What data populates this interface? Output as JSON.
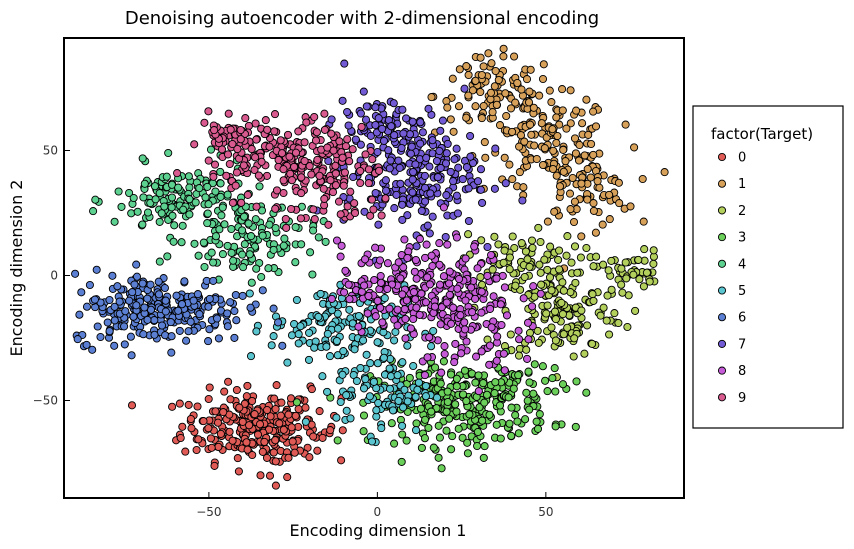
{
  "chart_data": {
    "type": "scatter",
    "title": "Denoising autoencoder with 2-dimensional encoding",
    "xlabel": "Encoding dimension 1",
    "ylabel": "Encoding dimension 2",
    "xlim": [
      -93,
      91
    ],
    "ylim": [
      -89,
      95
    ],
    "xticks": [
      -50,
      0,
      50
    ],
    "yticks": [
      -50,
      0,
      50
    ],
    "xtick_labels": [
      "−50",
      "0",
      "50"
    ],
    "ytick_labels": [
      "−50",
      "0",
      "50"
    ],
    "grid": false,
    "legend_title": "factor(Target)",
    "legend_position": "right",
    "series": [
      {
        "name": "0",
        "color": "#e05a56",
        "clusters": [
          {
            "center": [
              -38,
              -60
            ],
            "spread": [
              10,
              7
            ],
            "count": 230
          },
          {
            "center": [
              -27,
              -63
            ],
            "spread": [
              8,
              8
            ],
            "count": 60
          }
        ]
      },
      {
        "name": "1",
        "color": "#d8a15a",
        "clusters": [
          {
            "center": [
              35,
              72
            ],
            "spread": [
              9,
              8
            ],
            "count": 110
          },
          {
            "center": [
              52,
              55
            ],
            "spread": [
              9,
              8
            ],
            "count": 110
          },
          {
            "center": [
              60,
              35
            ],
            "spread": [
              8,
              8
            ],
            "count": 90
          }
        ]
      },
      {
        "name": "2",
        "color": "#b3cf5c",
        "clusters": [
          {
            "center": [
              55,
              -15
            ],
            "spread": [
              9,
              9
            ],
            "count": 140
          },
          {
            "center": [
              42,
              5
            ],
            "spread": [
              9,
              6
            ],
            "count": 80
          },
          {
            "center": [
              75,
              2
            ],
            "spread": [
              5,
              4
            ],
            "count": 45
          }
        ]
      },
      {
        "name": "3",
        "color": "#6bd05a",
        "clusters": [
          {
            "center": [
              25,
              -52
            ],
            "spread": [
              13,
              8
            ],
            "count": 260
          },
          {
            "center": [
              40,
              -45
            ],
            "spread": [
              8,
              6
            ],
            "count": 50
          }
        ]
      },
      {
        "name": "4",
        "color": "#5dd18f",
        "clusters": [
          {
            "center": [
              -58,
              30
            ],
            "spread": [
              10,
              7
            ],
            "count": 150
          },
          {
            "center": [
              -38,
              15
            ],
            "spread": [
              10,
              8
            ],
            "count": 120
          }
        ]
      },
      {
        "name": "5",
        "color": "#5bc5cf",
        "clusters": [
          {
            "center": [
              -12,
              -20
            ],
            "spread": [
              10,
              8
            ],
            "count": 150
          },
          {
            "center": [
              2,
              -45
            ],
            "spread": [
              7,
              9
            ],
            "count": 100
          }
        ]
      },
      {
        "name": "6",
        "color": "#5b7fd3",
        "clusters": [
          {
            "center": [
              -65,
              -13
            ],
            "spread": [
              13,
              7
            ],
            "count": 270
          }
        ]
      },
      {
        "name": "7",
        "color": "#735bd6",
        "clusters": [
          {
            "center": [
              10,
              42
            ],
            "spread": [
              10,
              12
            ],
            "count": 260
          },
          {
            "center": [
              0,
              63
            ],
            "spread": [
              6,
              5
            ],
            "count": 40
          }
        ]
      },
      {
        "name": "8",
        "color": "#c55bd6",
        "clusters": [
          {
            "center": [
              15,
              -5
            ],
            "spread": [
              13,
              9
            ],
            "count": 270
          },
          {
            "center": [
              25,
              -25
            ],
            "spread": [
              8,
              7
            ],
            "count": 60
          }
        ]
      },
      {
        "name": "9",
        "color": "#d85a8f",
        "clusters": [
          {
            "center": [
              -28,
              48
            ],
            "spread": [
              11,
              8
            ],
            "count": 200
          },
          {
            "center": [
              -12,
              35
            ],
            "spread": [
              9,
              9
            ],
            "count": 90
          },
          {
            "center": [
              -45,
              55
            ],
            "spread": [
              5,
              3
            ],
            "count": 30
          }
        ]
      }
    ]
  }
}
